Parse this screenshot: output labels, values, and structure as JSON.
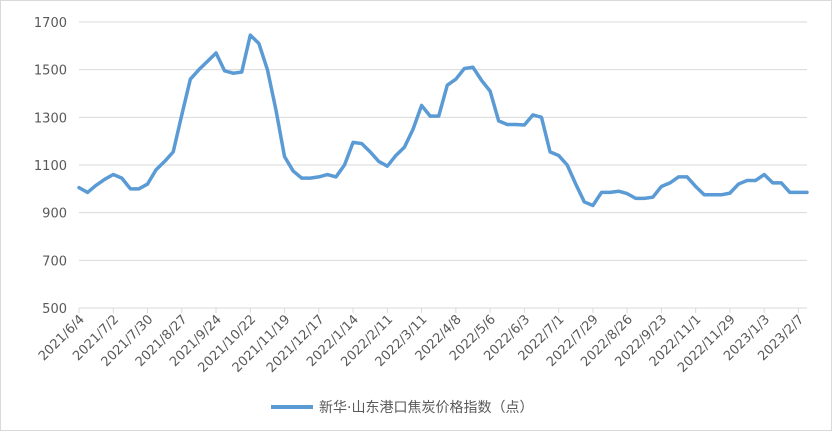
{
  "chart_data": {
    "type": "line",
    "title": "",
    "xlabel": "",
    "ylabel": "",
    "ylim": [
      500,
      1700
    ],
    "yticks": [
      500,
      700,
      900,
      1100,
      1300,
      1500,
      1700
    ],
    "grid": "horizontal",
    "legend_position": "bottom",
    "line_color": "#5b9bd5",
    "x_tick_labels": [
      "2021/6/4",
      "2021/7/2",
      "2021/7/30",
      "2021/8/27",
      "2021/9/24",
      "2021/10/22",
      "2021/11/19",
      "2021/12/17",
      "2022/1/14",
      "2022/2/11",
      "2022/3/11",
      "2022/4/8",
      "2022/5/6",
      "2022/6/3",
      "2022/7/1",
      "2022/7/29",
      "2022/8/26",
      "2022/9/23",
      "2022/11/1",
      "2022/11/29",
      "2023/1/3",
      "2023/2/7"
    ],
    "series": [
      {
        "name": "新华·山东港口焦炭价格指数（点）",
        "values": [
          1005,
          985,
          1015,
          1040,
          1060,
          1045,
          1000,
          1000,
          1020,
          1080,
          1115,
          1155,
          1310,
          1460,
          1500,
          1535,
          1570,
          1495,
          1485,
          1490,
          1645,
          1610,
          1500,
          1330,
          1135,
          1075,
          1045,
          1045,
          1050,
          1060,
          1050,
          1100,
          1195,
          1190,
          1155,
          1115,
          1095,
          1140,
          1175,
          1250,
          1350,
          1305,
          1305,
          1435,
          1460,
          1505,
          1510,
          1455,
          1410,
          1285,
          1270,
          1270,
          1268,
          1310,
          1300,
          1155,
          1140,
          1100,
          1020,
          945,
          930,
          985,
          985,
          990,
          980,
          960,
          960,
          965,
          1010,
          1025,
          1050,
          1050,
          1010,
          975,
          975,
          975,
          982,
          1020,
          1035,
          1035,
          1060,
          1025,
          1025,
          985,
          985,
          985
        ]
      }
    ]
  }
}
